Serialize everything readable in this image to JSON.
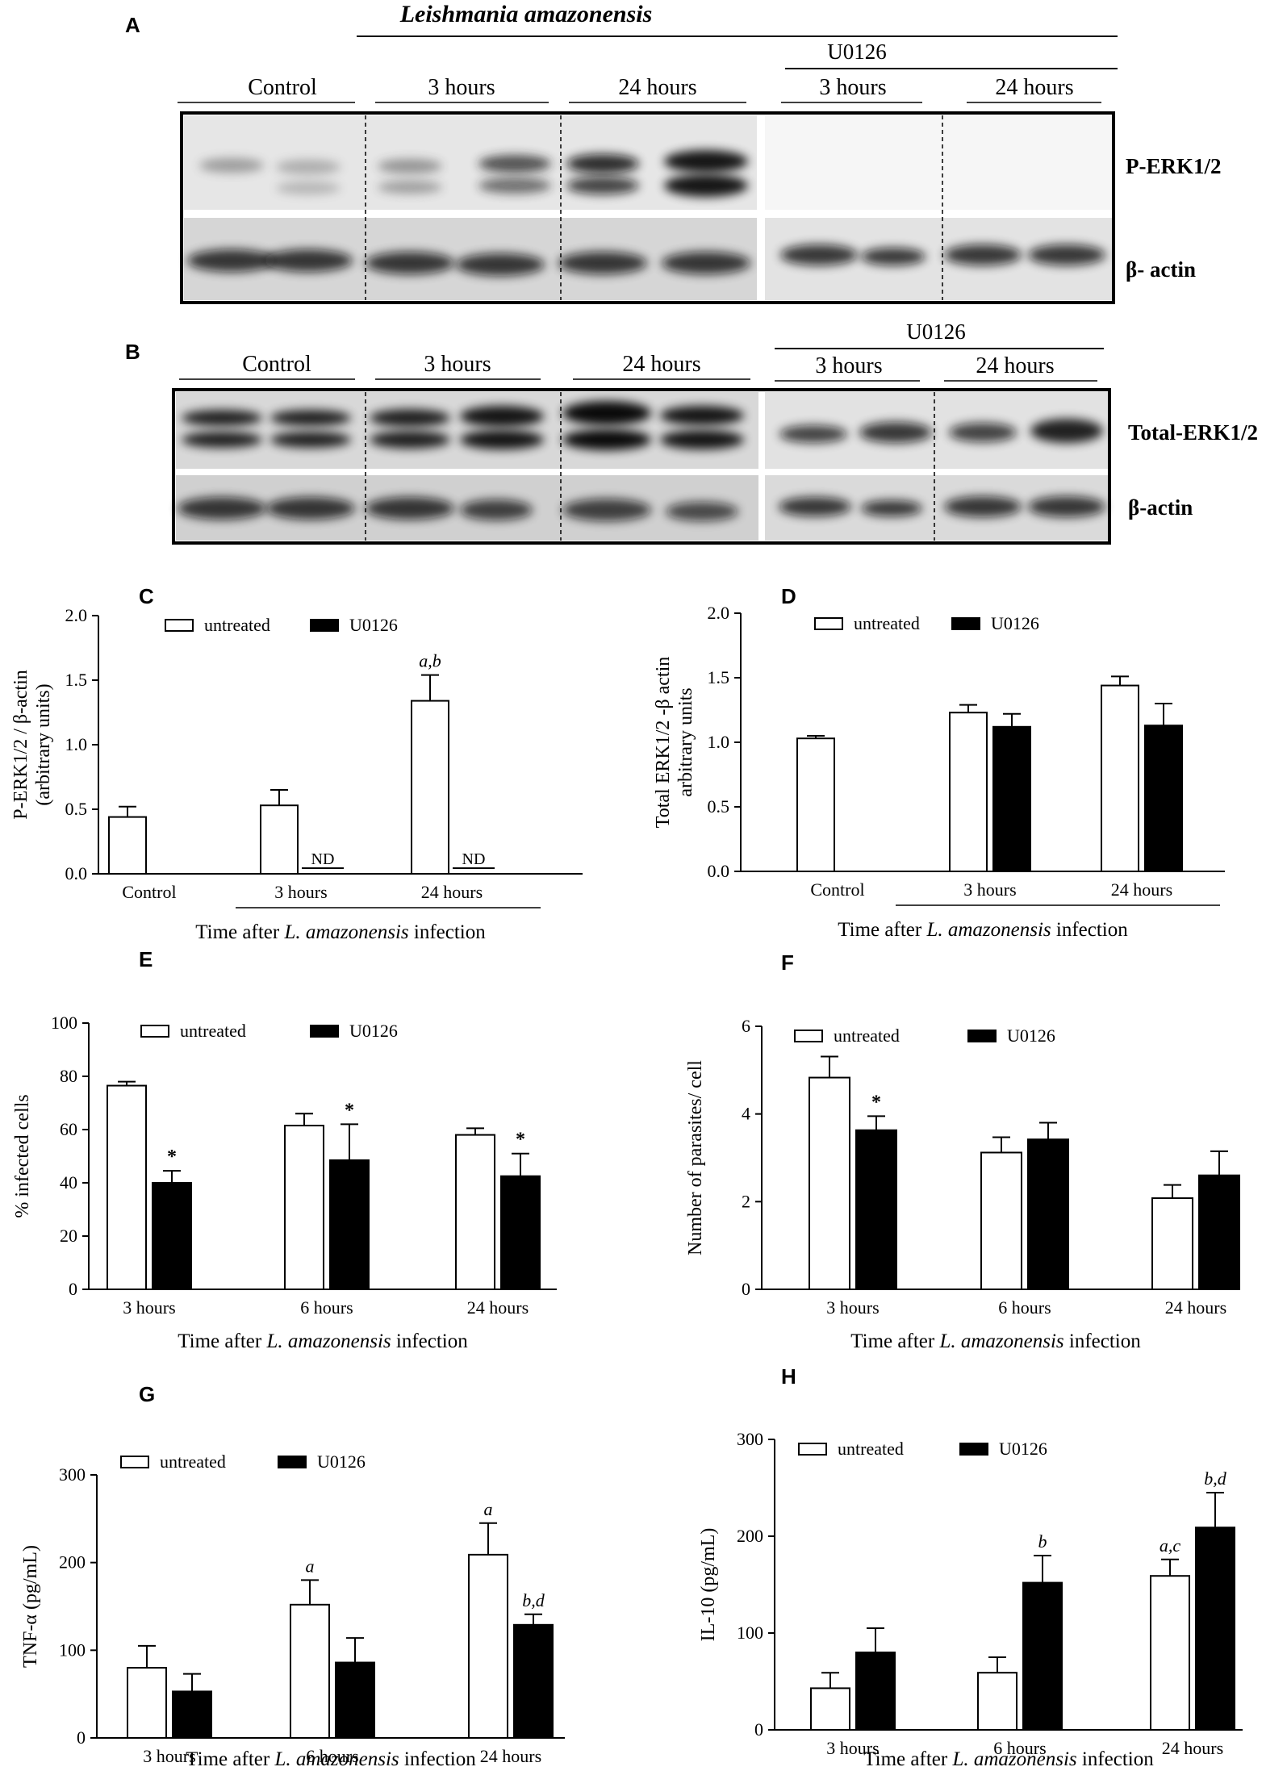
{
  "panels": {
    "A": {
      "letter": "A",
      "top_label": "Leishmania amazonensis",
      "inhibitor": "U0126",
      "groups": [
        "Control",
        "3 hours",
        "24 hours",
        "3 hours",
        "24 hours"
      ],
      "rows": [
        "P-ERK1/2",
        "β- actin"
      ]
    },
    "B": {
      "letter": "B",
      "inhibitor": "U0126",
      "groups": [
        "Control",
        "3 hours",
        "24 hours",
        "3 hours",
        "24 hours"
      ],
      "rows": [
        "Total-ERK1/2",
        "β-actin"
      ]
    }
  },
  "chart_data": [
    {
      "id": "C",
      "letter": "C",
      "type": "bar",
      "ylabel_lines": [
        "P-ERK1/2 / β-actin",
        "(arbitrary units)"
      ],
      "xlabel": [
        "Time after ",
        "L. amazonensis",
        " infection"
      ],
      "ylim": [
        0,
        2.0
      ],
      "ticks": [
        0.0,
        0.5,
        1.0,
        1.5,
        2.0
      ],
      "decimals": 1,
      "categories": [
        "Control",
        "3 hours",
        "24 hours"
      ],
      "bracket": {
        "from": 1,
        "to": 2
      },
      "legend": [
        "untreated",
        "U0126"
      ],
      "series": [
        {
          "name": "untreated",
          "color": "#ffffff",
          "values": [
            0.44,
            0.53,
            1.34
          ],
          "errors": [
            0.08,
            0.12,
            0.2
          ],
          "annotations": [
            "",
            "",
            "a,b"
          ]
        },
        {
          "name": "U0126",
          "color": "#000000",
          "values": [
            null,
            null,
            null
          ],
          "errors": [
            null,
            null,
            null
          ],
          "annotations": [
            "",
            "ND",
            "ND"
          ]
        }
      ]
    },
    {
      "id": "D",
      "letter": "D",
      "type": "bar",
      "ylabel_lines": [
        "Total ERK1/2 -β actin",
        "arbitrary units"
      ],
      "xlabel": [
        "Time after ",
        "L. amazonensis",
        " infection"
      ],
      "ylim": [
        0,
        2.0
      ],
      "ticks": [
        0.0,
        0.5,
        1.0,
        1.5,
        2.0
      ],
      "decimals": 1,
      "categories": [
        "Control",
        "3 hours",
        "24 hours"
      ],
      "bracket": {
        "from": 1,
        "to": 2
      },
      "legend": [
        "untreated",
        "U0126"
      ],
      "series": [
        {
          "name": "untreated",
          "color": "#ffffff",
          "values": [
            1.03,
            1.23,
            1.44
          ],
          "errors": [
            0.02,
            0.06,
            0.07
          ],
          "annotations": [
            "",
            "",
            ""
          ]
        },
        {
          "name": "U0126",
          "color": "#000000",
          "values": [
            null,
            1.12,
            1.13
          ],
          "errors": [
            null,
            0.1,
            0.17
          ],
          "annotations": [
            "",
            "",
            ""
          ]
        }
      ]
    },
    {
      "id": "E",
      "letter": "E",
      "type": "bar",
      "ylabel_lines": [
        "% infected cells"
      ],
      "xlabel": [
        "Time after ",
        "L. amazonensis",
        " infection"
      ],
      "ylim": [
        0,
        100
      ],
      "ticks": [
        0,
        20,
        40,
        60,
        80,
        100
      ],
      "decimals": 0,
      "categories": [
        "3 hours",
        "6 hours",
        "24 hours"
      ],
      "legend": [
        "untreated",
        "U0126"
      ],
      "series": [
        {
          "name": "untreated",
          "color": "#ffffff",
          "values": [
            76.5,
            61.5,
            58
          ],
          "errors": [
            1.5,
            4.5,
            2.5
          ],
          "annotations": [
            "",
            "",
            ""
          ]
        },
        {
          "name": "U0126",
          "color": "#000000",
          "values": [
            40,
            48.5,
            42.5
          ],
          "errors": [
            4.5,
            13.5,
            8.5
          ],
          "annotations": [
            "*",
            "*",
            "*"
          ]
        }
      ]
    },
    {
      "id": "F",
      "letter": "F",
      "type": "bar",
      "ylabel_lines": [
        "Number of parasites/ cell"
      ],
      "xlabel": [
        "Time after ",
        "L. amazonensis",
        " infection"
      ],
      "ylim": [
        0,
        6
      ],
      "ticks": [
        0,
        2,
        4,
        6
      ],
      "decimals": 0,
      "categories": [
        "3 hours",
        "6 hours",
        "24 hours"
      ],
      "legend": [
        "untreated",
        "U0126"
      ],
      "series": [
        {
          "name": "untreated",
          "color": "#ffffff",
          "values": [
            4.83,
            3.12,
            2.08
          ],
          "errors": [
            0.48,
            0.35,
            0.3
          ],
          "annotations": [
            "",
            "",
            ""
          ]
        },
        {
          "name": "U0126",
          "color": "#000000",
          "values": [
            3.63,
            3.42,
            2.6
          ],
          "errors": [
            0.32,
            0.38,
            0.55
          ],
          "annotations": [
            "*",
            "",
            ""
          ]
        }
      ]
    },
    {
      "id": "G",
      "letter": "G",
      "type": "bar",
      "ylabel_lines": [
        "TNF-α (pg/mL)"
      ],
      "xlabel": [
        "Time after ",
        "L. amazonensis",
        " infection"
      ],
      "ylim": [
        0,
        300
      ],
      "ticks": [
        0,
        100,
        200,
        300
      ],
      "decimals": 0,
      "categories": [
        "3 hours",
        "6 hours",
        "24 hours"
      ],
      "legend": [
        "untreated",
        "U0126"
      ],
      "series": [
        {
          "name": "untreated",
          "color": "#ffffff",
          "values": [
            80,
            152,
            209
          ],
          "errors": [
            25,
            28,
            36
          ],
          "annotations": [
            "",
            "a",
            "a"
          ]
        },
        {
          "name": "U0126",
          "color": "#000000",
          "values": [
            53,
            86,
            129
          ],
          "errors": [
            20,
            28,
            12
          ],
          "annotations": [
            "",
            "",
            "b,d"
          ]
        }
      ]
    },
    {
      "id": "H",
      "letter": "H",
      "type": "bar",
      "ylabel_lines": [
        "IL-10 (pg/mL)"
      ],
      "xlabel": [
        "Time after ",
        "L. amazonensis",
        " infection"
      ],
      "ylim": [
        0,
        300
      ],
      "ticks": [
        0,
        100,
        200,
        300
      ],
      "decimals": 0,
      "categories": [
        "3 hours",
        "6 hours",
        "24 hours"
      ],
      "legend": [
        "untreated",
        "U0126"
      ],
      "series": [
        {
          "name": "untreated",
          "color": "#ffffff",
          "values": [
            43,
            59,
            159
          ],
          "errors": [
            16,
            16,
            17
          ],
          "annotations": [
            "",
            "",
            "a,c"
          ]
        },
        {
          "name": "U0126",
          "color": "#000000",
          "values": [
            80,
            152,
            209
          ],
          "errors": [
            25,
            28,
            36
          ],
          "annotations": [
            "",
            "b",
            "b,d"
          ]
        }
      ]
    }
  ]
}
